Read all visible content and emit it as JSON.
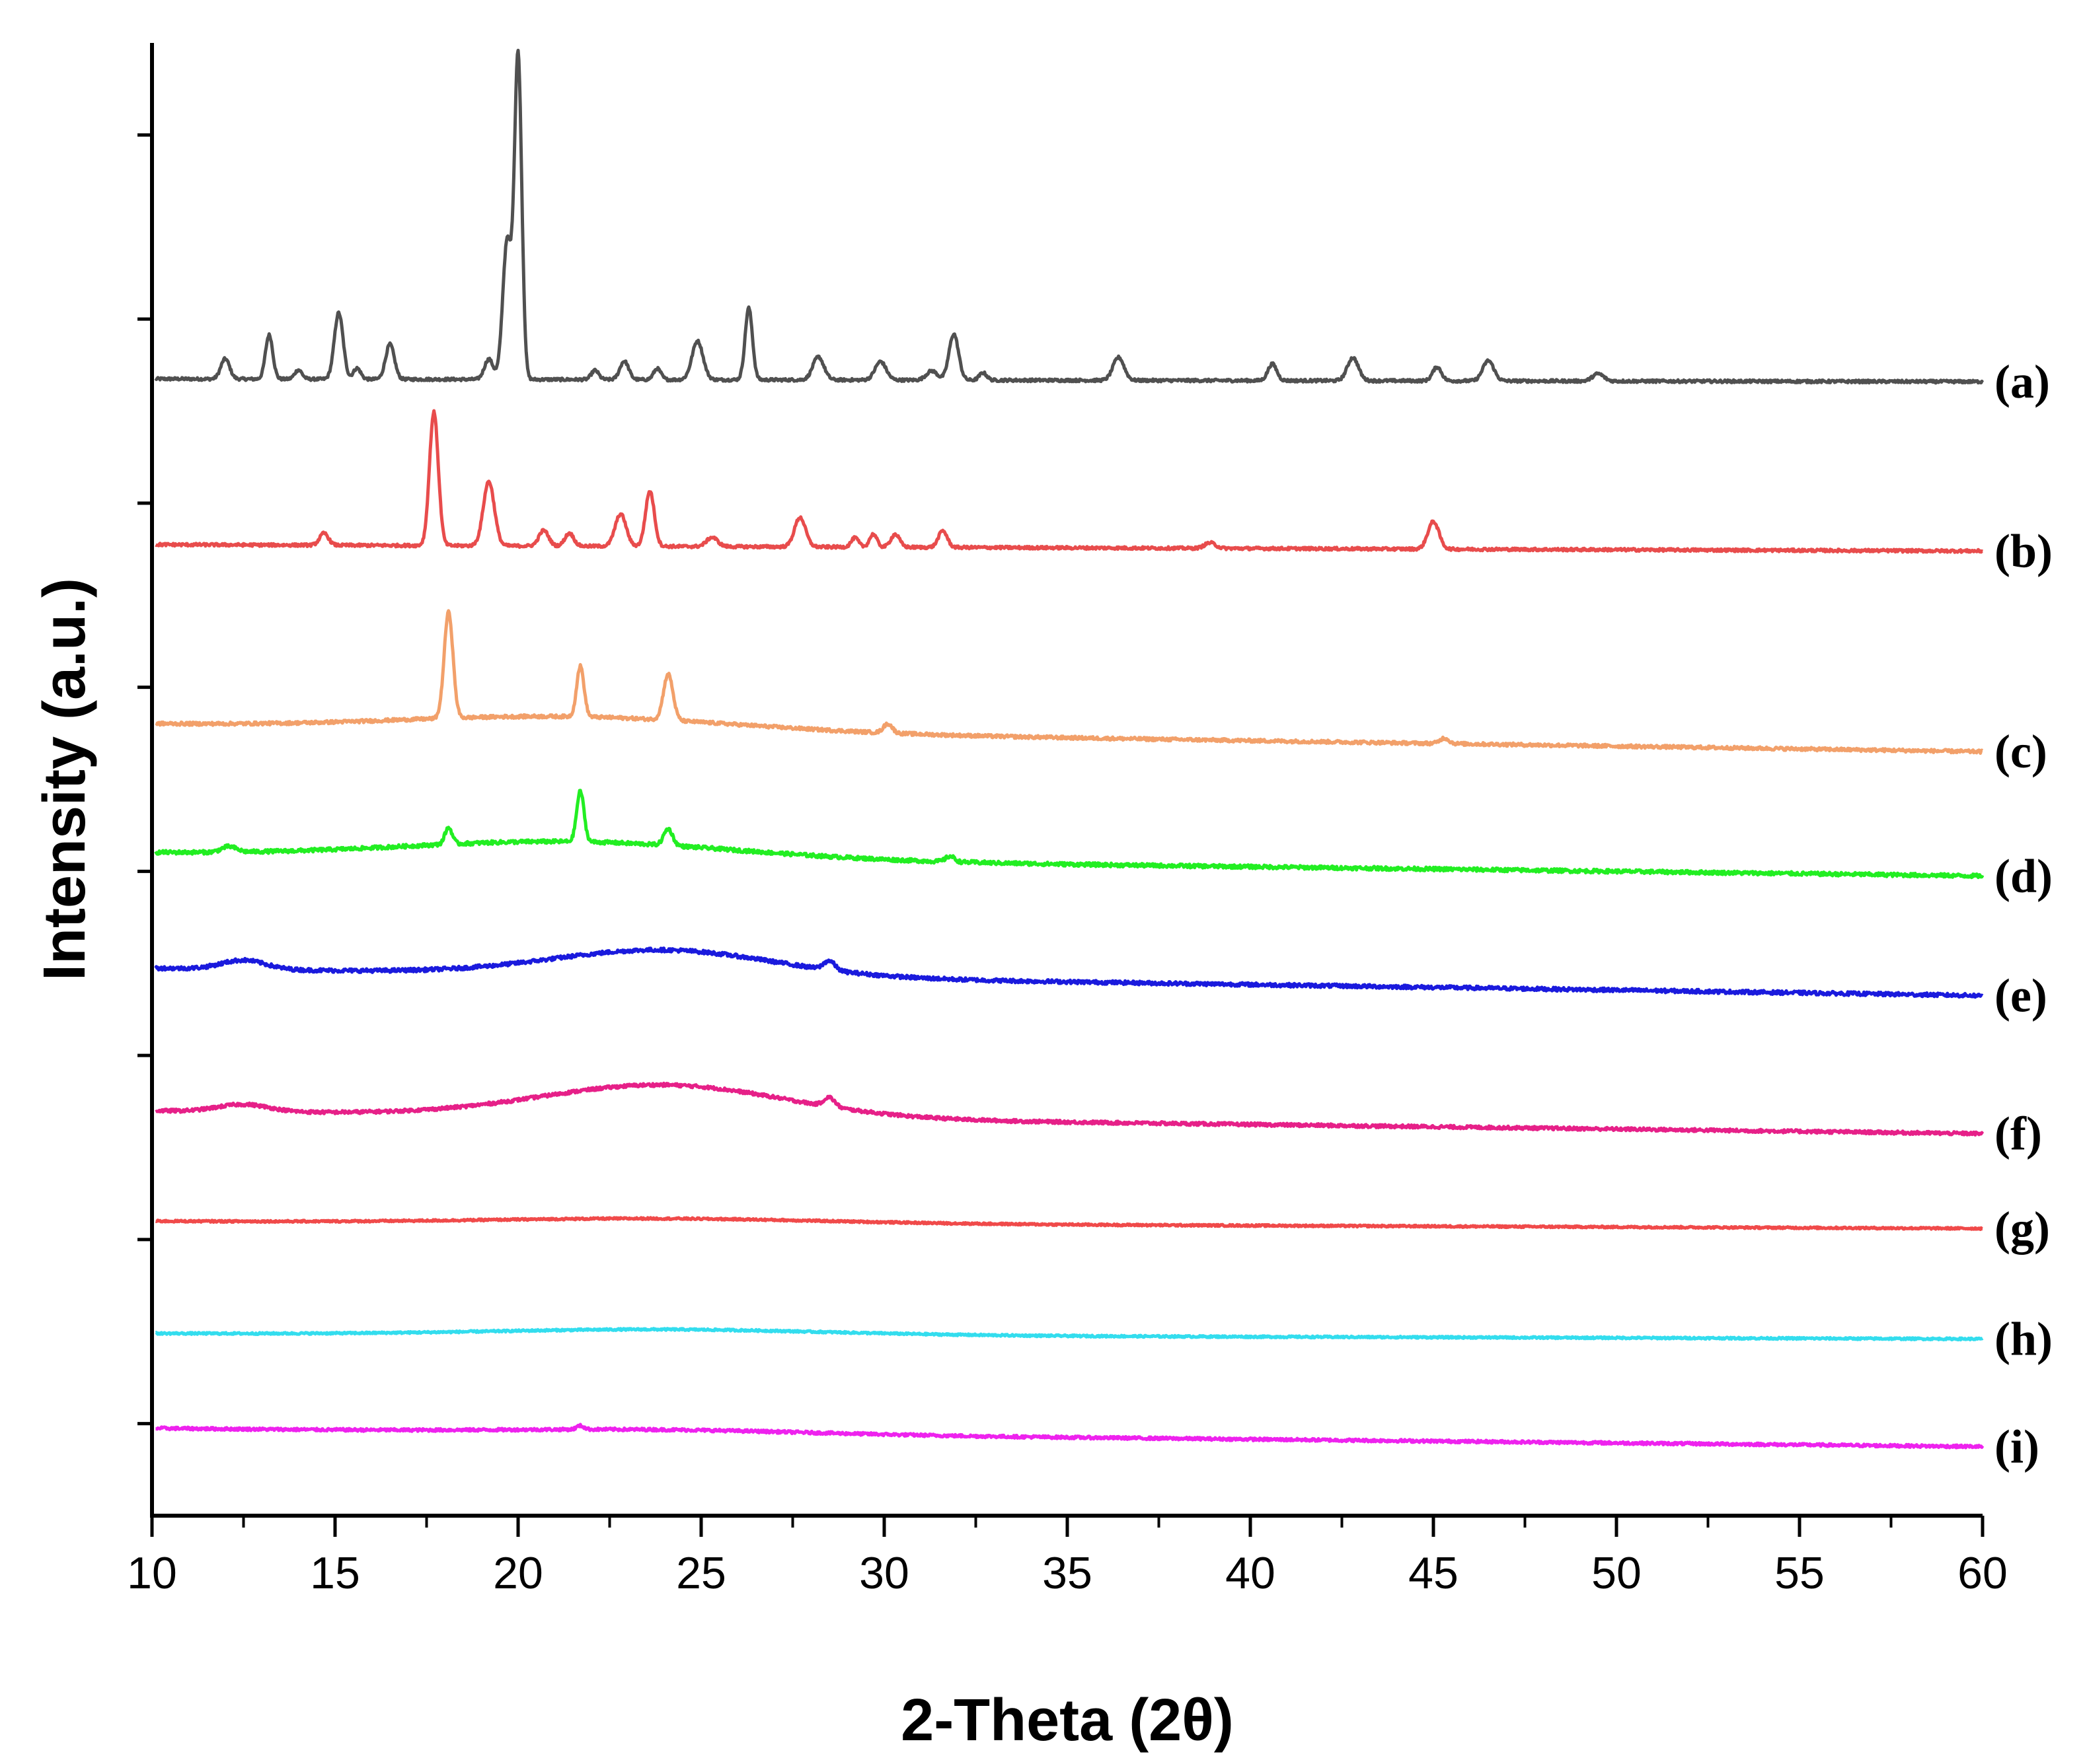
{
  "chart_data": {
    "type": "line",
    "title": "",
    "xlabel": "2-Theta (2θ)",
    "ylabel": "Intensity (a.u.)",
    "xlim": [
      10,
      60
    ],
    "xticks": [
      10,
      15,
      20,
      25,
      30,
      35,
      40,
      45,
      50,
      55,
      60
    ],
    "ylim": [
      0,
      16
    ],
    "y_ticks_unlabeled": [
      1,
      3,
      5,
      7,
      9,
      11,
      13,
      15
    ],
    "grid": false,
    "legend": "inline labels at right end of each trace",
    "series": [
      {
        "name": "(a)",
        "color": "#505050",
        "baseline": 12.35,
        "baseline_end": 12.32,
        "noise": 0.03,
        "peaks": [
          [
            12.0,
            0.22,
            0.12
          ],
          [
            13.2,
            0.48,
            0.1
          ],
          [
            14.0,
            0.1,
            0.1
          ],
          [
            15.1,
            0.72,
            0.12
          ],
          [
            15.6,
            0.12,
            0.1
          ],
          [
            16.5,
            0.38,
            0.12
          ],
          [
            19.2,
            0.22,
            0.12
          ],
          [
            19.7,
            1.5,
            0.12
          ],
          [
            20.0,
            3.5,
            0.1
          ],
          [
            22.1,
            0.1,
            0.1
          ],
          [
            22.9,
            0.2,
            0.12
          ],
          [
            23.8,
            0.12,
            0.1
          ],
          [
            24.9,
            0.42,
            0.15
          ],
          [
            26.3,
            0.78,
            0.1
          ],
          [
            28.2,
            0.25,
            0.15
          ],
          [
            29.9,
            0.2,
            0.15
          ],
          [
            31.3,
            0.1,
            0.15
          ],
          [
            31.9,
            0.5,
            0.13
          ],
          [
            32.7,
            0.08,
            0.1
          ],
          [
            36.4,
            0.25,
            0.15
          ],
          [
            40.6,
            0.18,
            0.12
          ],
          [
            42.8,
            0.25,
            0.15
          ],
          [
            45.1,
            0.15,
            0.12
          ],
          [
            46.5,
            0.22,
            0.15
          ],
          [
            49.5,
            0.08,
            0.15
          ]
        ],
        "humps": []
      },
      {
        "name": "(b)",
        "color": "#E84C4C",
        "baseline": 10.55,
        "baseline_end": 10.48,
        "noise": 0.03,
        "peaks": [
          [
            14.7,
            0.13,
            0.12
          ],
          [
            17.7,
            1.45,
            0.12
          ],
          [
            19.2,
            0.7,
            0.15
          ],
          [
            20.7,
            0.17,
            0.13
          ],
          [
            21.4,
            0.14,
            0.12
          ],
          [
            22.8,
            0.35,
            0.15
          ],
          [
            23.6,
            0.6,
            0.12
          ],
          [
            25.3,
            0.1,
            0.15
          ],
          [
            27.7,
            0.32,
            0.15
          ],
          [
            29.2,
            0.1,
            0.1
          ],
          [
            29.7,
            0.14,
            0.1
          ],
          [
            30.3,
            0.14,
            0.12
          ],
          [
            31.6,
            0.18,
            0.12
          ],
          [
            38.9,
            0.06,
            0.15
          ],
          [
            45.0,
            0.3,
            0.15
          ]
        ],
        "humps": []
      },
      {
        "name": "(c)",
        "color": "#F2A06A",
        "baseline": 8.6,
        "baseline_end": 8.3,
        "noise": 0.035,
        "peaks": [
          [
            18.1,
            1.15,
            0.12
          ],
          [
            21.7,
            0.55,
            0.1
          ],
          [
            24.1,
            0.5,
            0.13
          ],
          [
            30.1,
            0.1,
            0.12
          ],
          [
            45.3,
            0.06,
            0.12
          ]
        ],
        "humps": [
          [
            21.5,
            0.15,
            4.5
          ]
        ]
      },
      {
        "name": "(d)",
        "color": "#22EE22",
        "baseline": 7.2,
        "baseline_end": 6.95,
        "noise": 0.04,
        "peaks": [
          [
            12.1,
            0.06,
            0.2
          ],
          [
            18.1,
            0.18,
            0.1
          ],
          [
            21.7,
            0.55,
            0.1
          ],
          [
            24.1,
            0.18,
            0.12
          ],
          [
            31.8,
            0.06,
            0.12
          ]
        ],
        "humps": [
          [
            21.5,
            0.18,
            4.5
          ]
        ]
      },
      {
        "name": "(e)",
        "color": "#1A1ADD",
        "baseline": 5.95,
        "baseline_end": 5.65,
        "noise": 0.04,
        "peaks": [
          [
            28.5,
            0.1,
            0.15
          ]
        ],
        "humps": [
          [
            12.5,
            0.1,
            0.6
          ],
          [
            24.0,
            0.28,
            3.0
          ]
        ]
      },
      {
        "name": "(f)",
        "color": "#E62088",
        "baseline": 4.4,
        "baseline_end": 4.15,
        "noise": 0.035,
        "peaks": [
          [
            28.5,
            0.1,
            0.15
          ]
        ],
        "humps": [
          [
            12.5,
            0.08,
            0.7
          ],
          [
            24.0,
            0.35,
            3.3
          ]
        ]
      },
      {
        "name": "(g)",
        "color": "#F04A4A",
        "baseline": 3.2,
        "baseline_end": 3.12,
        "noise": 0.02,
        "peaks": [],
        "humps": [
          [
            24.0,
            0.05,
            4.5
          ]
        ]
      },
      {
        "name": "(h)",
        "color": "#33DDEE",
        "baseline": 1.98,
        "baseline_end": 1.92,
        "noise": 0.02,
        "peaks": [],
        "humps": [
          [
            24.0,
            0.06,
            4.5
          ]
        ]
      },
      {
        "name": "(i)",
        "color": "#EE22EE",
        "baseline": 0.95,
        "baseline_end": 0.75,
        "noise": 0.03,
        "peaks": [
          [
            21.7,
            0.04,
            0.1
          ]
        ],
        "humps": [
          [
            24.0,
            0.04,
            4.0
          ]
        ]
      }
    ]
  }
}
